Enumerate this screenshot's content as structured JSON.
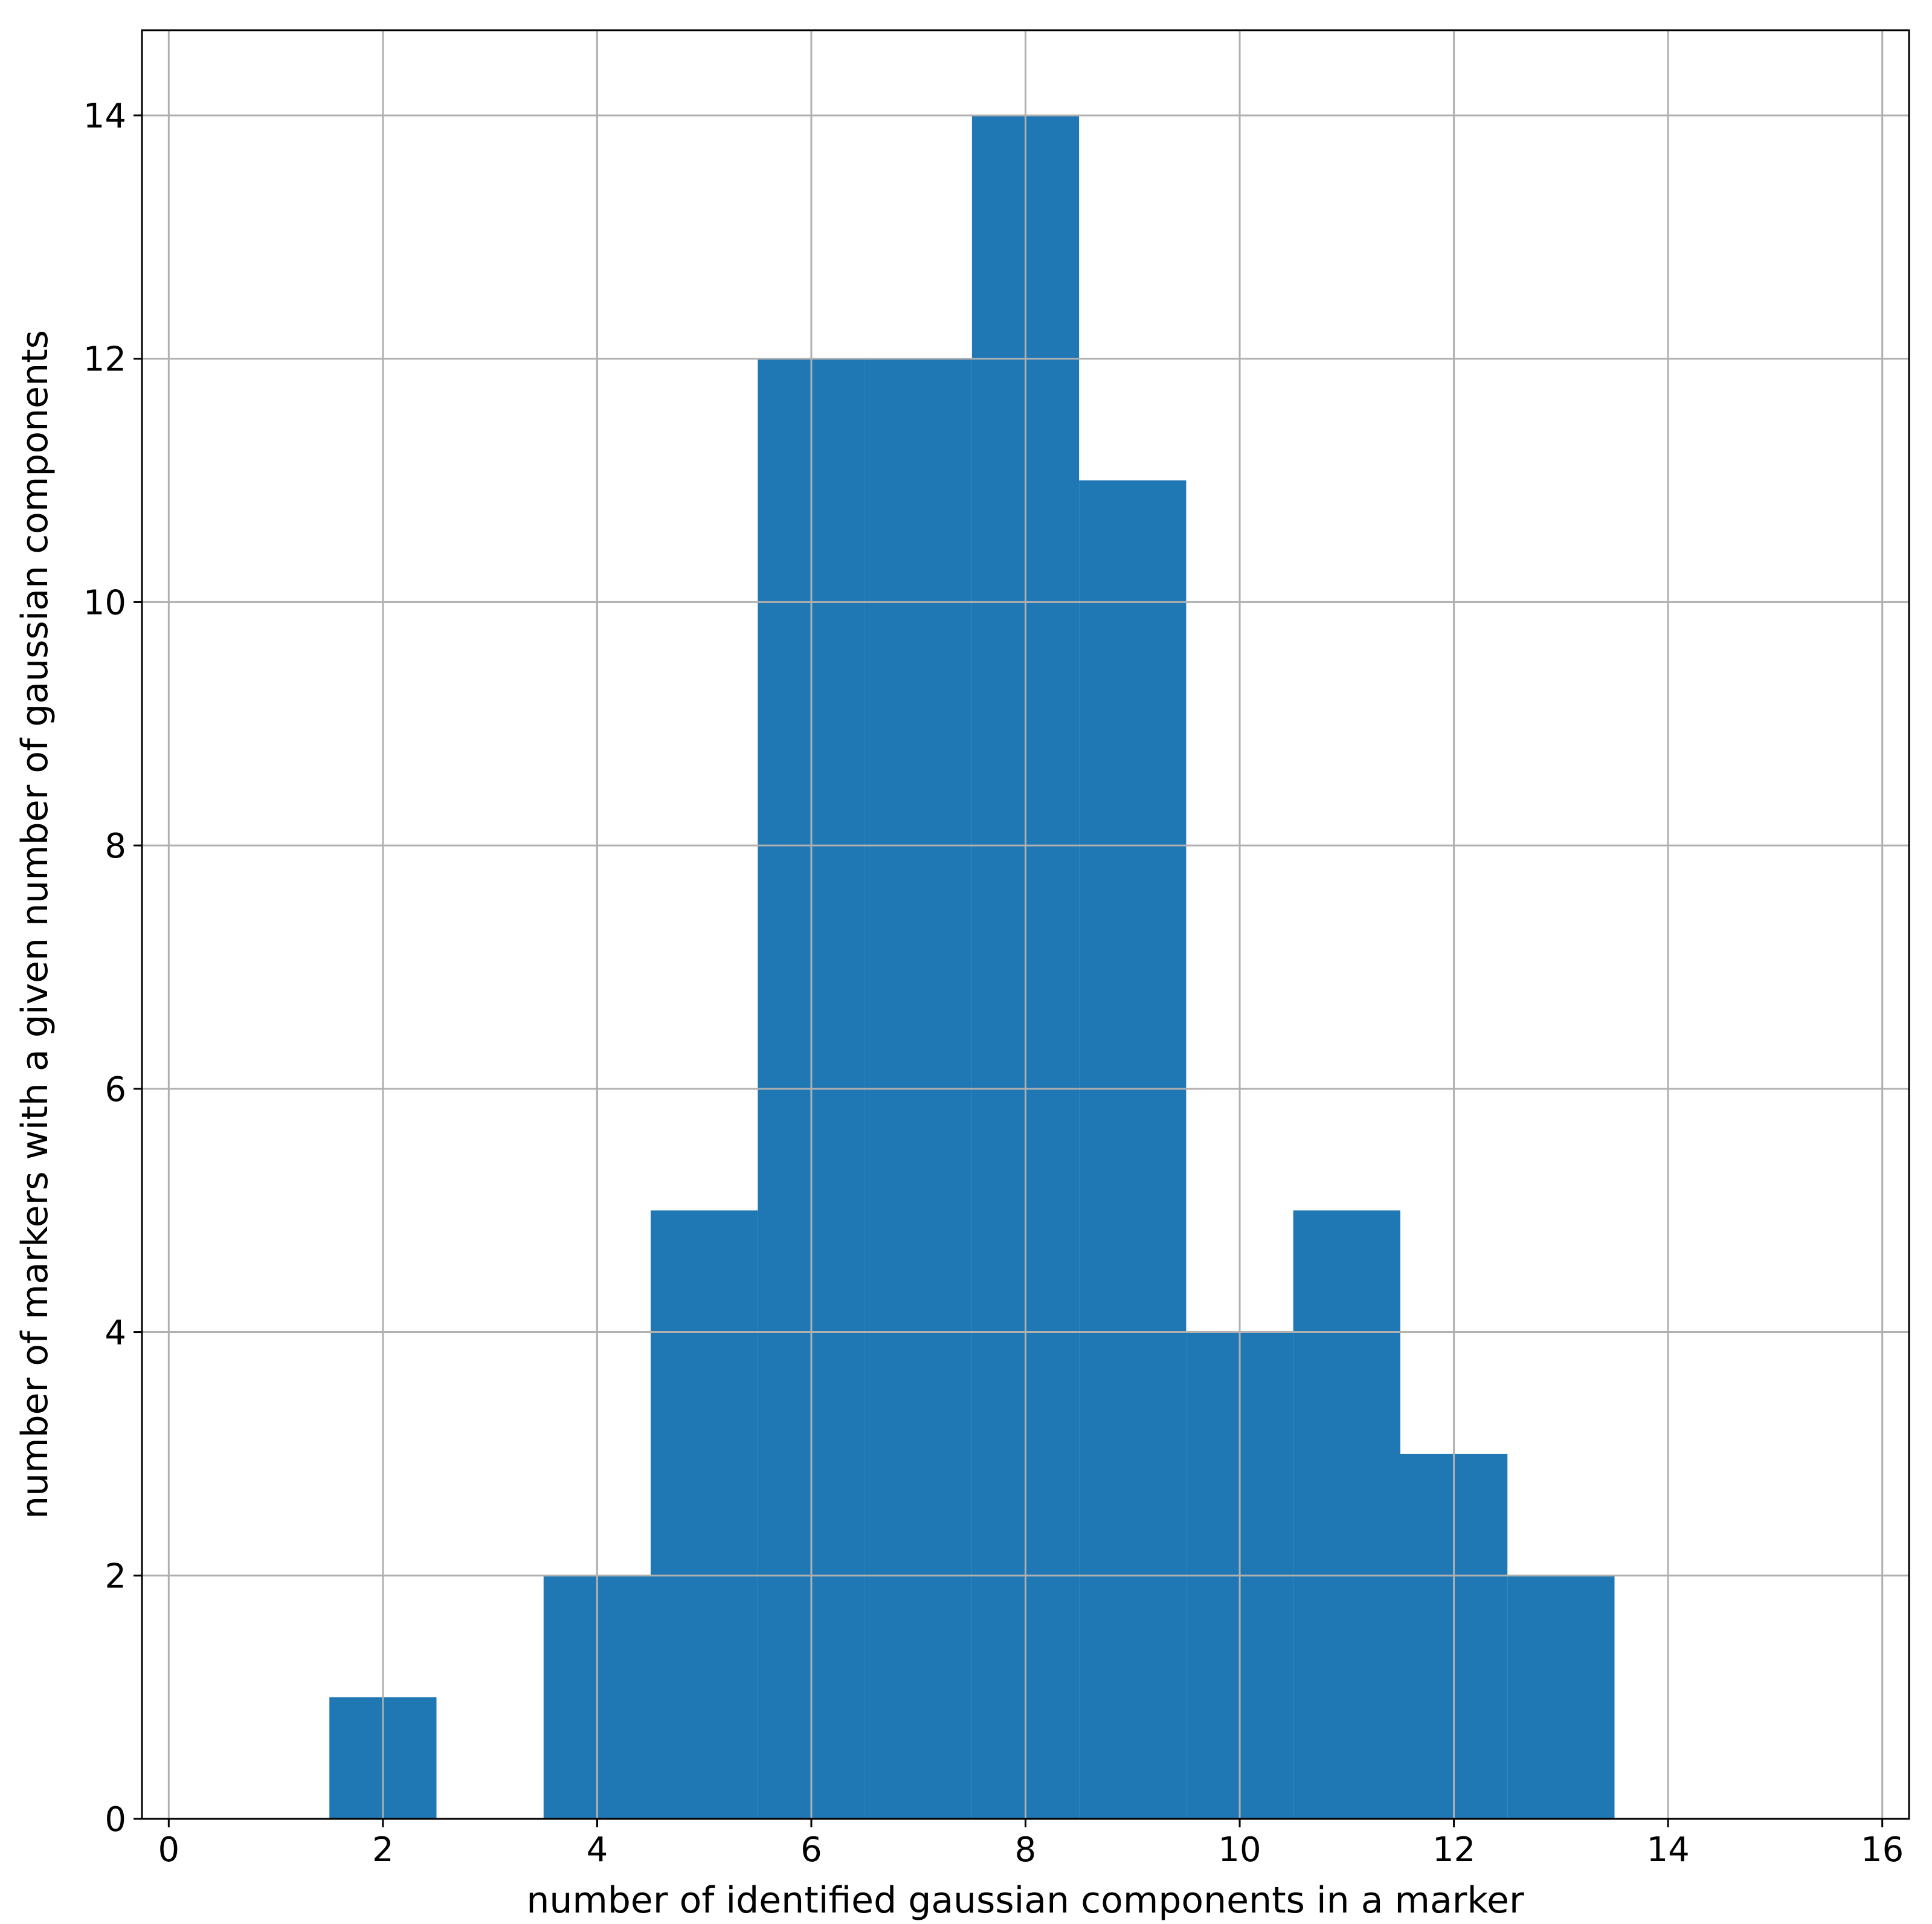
{
  "chart_data": {
    "type": "bar",
    "bins": [
      {
        "x0": 1.5,
        "x1": 2.5,
        "count": 1
      },
      {
        "x0": 3.5,
        "x1": 4.5,
        "count": 2
      },
      {
        "x0": 4.5,
        "x1": 5.5,
        "count": 5
      },
      {
        "x0": 5.5,
        "x1": 6.5,
        "count": 12
      },
      {
        "x0": 6.5,
        "x1": 7.5,
        "count": 12
      },
      {
        "x0": 7.5,
        "x1": 8.5,
        "count": 14
      },
      {
        "x0": 8.5,
        "x1": 9.5,
        "count": 11
      },
      {
        "x0": 9.5,
        "x1": 10.5,
        "count": 4
      },
      {
        "x0": 10.5,
        "x1": 11.5,
        "count": 5
      },
      {
        "x0": 11.5,
        "x1": 12.5,
        "count": 3
      },
      {
        "x0": 12.5,
        "x1": 13.5,
        "count": 2
      }
    ],
    "xlabel": "number of identified gaussian components in a marker",
    "ylabel": "number of markers with a given number of gaussian components",
    "xlim": [
      -0.25,
      16.25
    ],
    "ylim": [
      0,
      14.7
    ],
    "xticks": [
      0,
      2,
      4,
      6,
      8,
      10,
      12,
      14,
      16
    ],
    "yticks": [
      0,
      2,
      4,
      6,
      8,
      10,
      12,
      14
    ],
    "grid": true,
    "bar_color": "#1f77b4"
  }
}
